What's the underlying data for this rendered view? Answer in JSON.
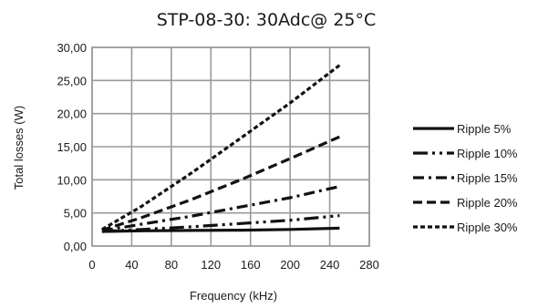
{
  "chart_data": {
    "type": "line",
    "title": "STP-08-30: 30Adc@ 25°C",
    "xlabel": "Frequency (kHz)",
    "ylabel": "Total losses (W)",
    "xlim": [
      0,
      280
    ],
    "ylim": [
      0,
      30
    ],
    "x_ticks": [
      "0",
      "40",
      "80",
      "120",
      "160",
      "200",
      "240",
      "280"
    ],
    "y_ticks": [
      "0,00",
      "5,00",
      "10,00",
      "15,00",
      "20,00",
      "25,00",
      "30,00"
    ],
    "grid": true,
    "legend_position": "right",
    "series": [
      {
        "name": "Ripple 5%",
        "dash": "solid",
        "x": [
          10,
          50,
          100,
          150,
          200,
          250
        ],
        "y": [
          2.2,
          2.3,
          2.35,
          2.4,
          2.5,
          2.7
        ]
      },
      {
        "name": "Ripple 10%",
        "dash": "dash-dot-dot",
        "x": [
          10,
          50,
          100,
          150,
          200,
          250
        ],
        "y": [
          2.2,
          2.5,
          2.9,
          3.4,
          3.9,
          4.6
        ]
      },
      {
        "name": "Ripple 15%",
        "dash": "dash-dot",
        "x": [
          10,
          50,
          100,
          150,
          200,
          250
        ],
        "y": [
          2.3,
          3.3,
          4.5,
          5.9,
          7.3,
          9.0
        ]
      },
      {
        "name": "Ripple 20%",
        "dash": "dashed",
        "x": [
          10,
          50,
          100,
          150,
          200,
          250
        ],
        "y": [
          2.4,
          4.3,
          7.0,
          10.0,
          13.2,
          16.5
        ]
      },
      {
        "name": "Ripple 30%",
        "dash": "short-dash",
        "x": [
          10,
          50,
          100,
          150,
          200,
          250
        ],
        "y": [
          2.5,
          6.0,
          11.0,
          16.3,
          21.6,
          27.3
        ]
      }
    ]
  }
}
